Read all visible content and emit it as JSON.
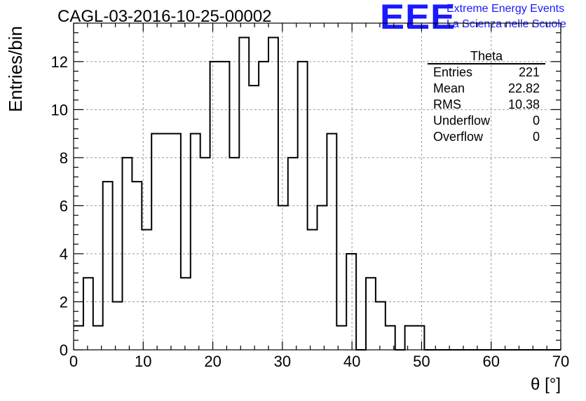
{
  "title": "CAGL-03-2016-10-25-00002",
  "logo": {
    "mark": "EEE",
    "line1": "Extreme Energy Events",
    "line2": "La Scienza nelle Scuole",
    "color": "#1a1aff"
  },
  "stats": {
    "title": "Theta",
    "rows": [
      {
        "label": "Entries",
        "value": "221"
      },
      {
        "label": "Mean",
        "value": "22.82"
      },
      {
        "label": "RMS",
        "value": "10.38"
      },
      {
        "label": "Underflow",
        "value": "0"
      },
      {
        "label": "Overflow",
        "value": "0"
      }
    ]
  },
  "chart_data": {
    "type": "bar",
    "style": "step-histogram",
    "xlabel": "θ [°]",
    "ylabel": "Entries/bin",
    "xlim": [
      0,
      70
    ],
    "ylim": [
      0,
      13.6
    ],
    "grid": true,
    "bin_width": 1.4,
    "x_ticks": [
      0,
      10,
      20,
      30,
      40,
      50,
      60,
      70
    ],
    "y_ticks": [
      0,
      2,
      4,
      6,
      8,
      10,
      12
    ],
    "values": [
      1,
      3,
      1,
      7,
      2,
      8,
      7,
      5,
      9,
      9,
      9,
      3,
      9,
      8,
      12,
      12,
      8,
      13,
      11,
      12,
      13,
      6,
      8,
      12,
      5,
      6,
      9,
      1,
      4,
      0,
      3,
      2,
      1,
      0,
      1,
      1,
      0,
      0,
      0,
      0,
      0,
      0,
      0,
      0,
      0,
      0,
      0,
      0,
      0,
      0
    ],
    "color": "#000000"
  }
}
